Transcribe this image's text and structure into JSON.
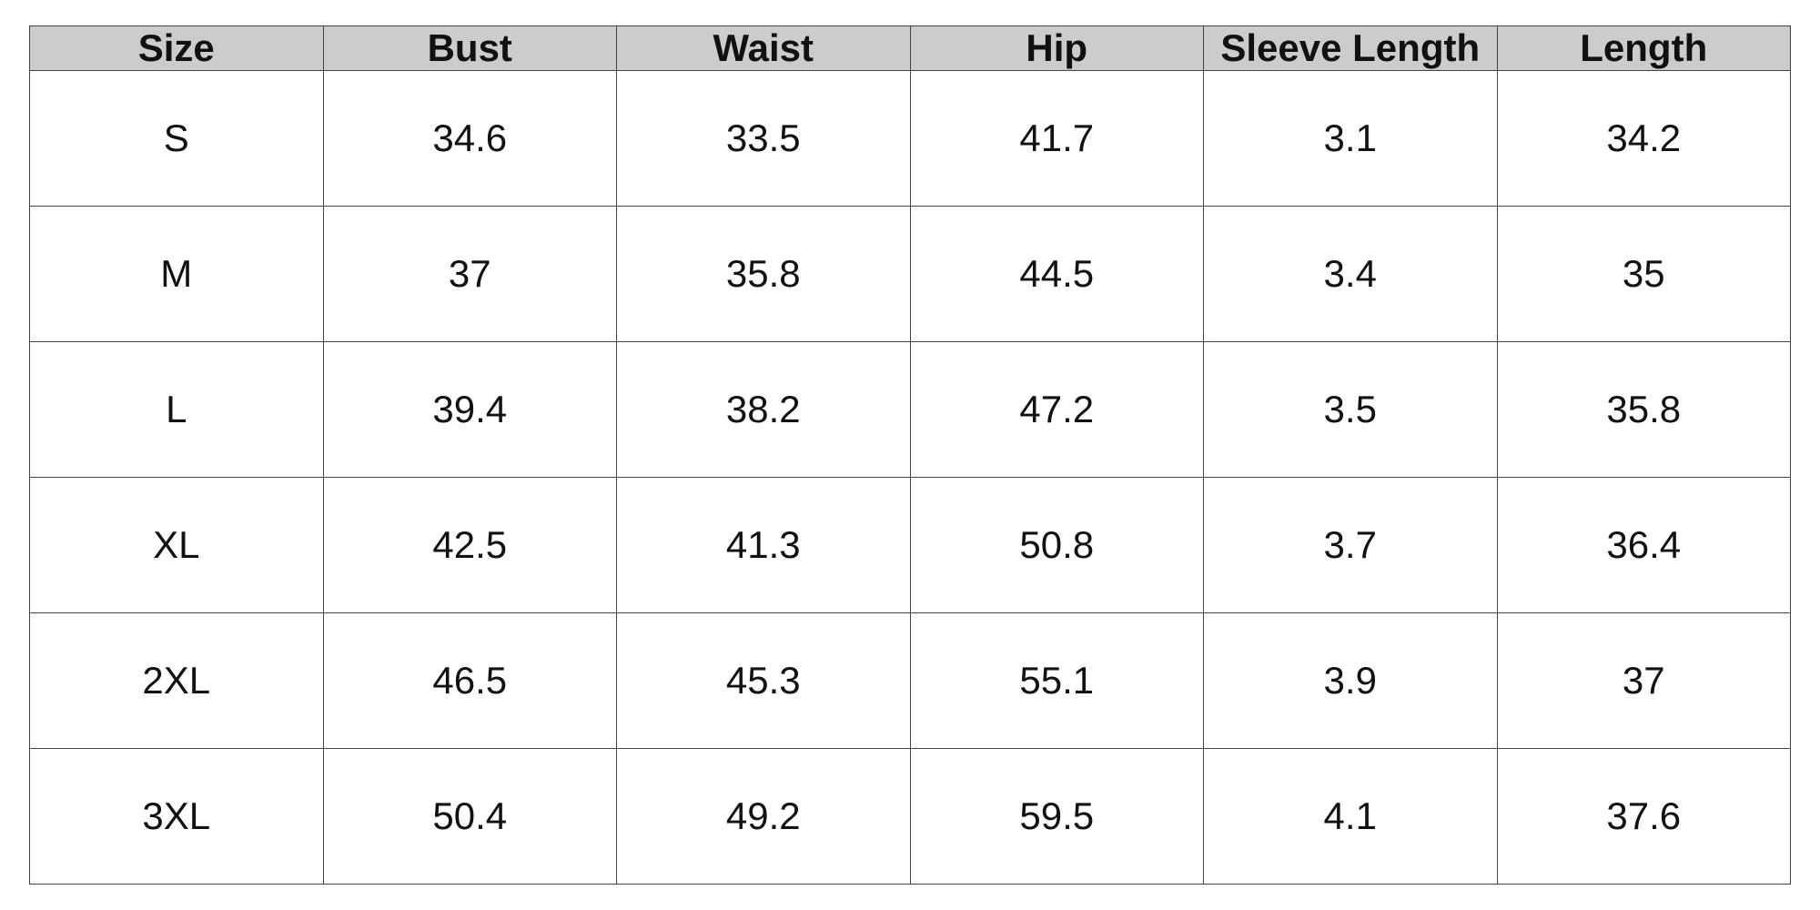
{
  "table": {
    "header": [
      "Size",
      "Bust",
      "Waist",
      "Hip",
      "Sleeve Length",
      "Length"
    ],
    "rows": [
      [
        "S",
        "34.6",
        "33.5",
        "41.7",
        "3.1",
        "34.2"
      ],
      [
        "M",
        "37",
        "35.8",
        "44.5",
        "3.4",
        "35"
      ],
      [
        "L",
        "39.4",
        "38.2",
        "47.2",
        "3.5",
        "35.8"
      ],
      [
        "XL",
        "42.5",
        "41.3",
        "50.8",
        "3.7",
        "36.4"
      ],
      [
        "2XL",
        "46.5",
        "45.3",
        "55.1",
        "3.9",
        "37"
      ],
      [
        "3XL",
        "50.4",
        "49.2",
        "59.5",
        "4.1",
        "37.6"
      ]
    ]
  }
}
